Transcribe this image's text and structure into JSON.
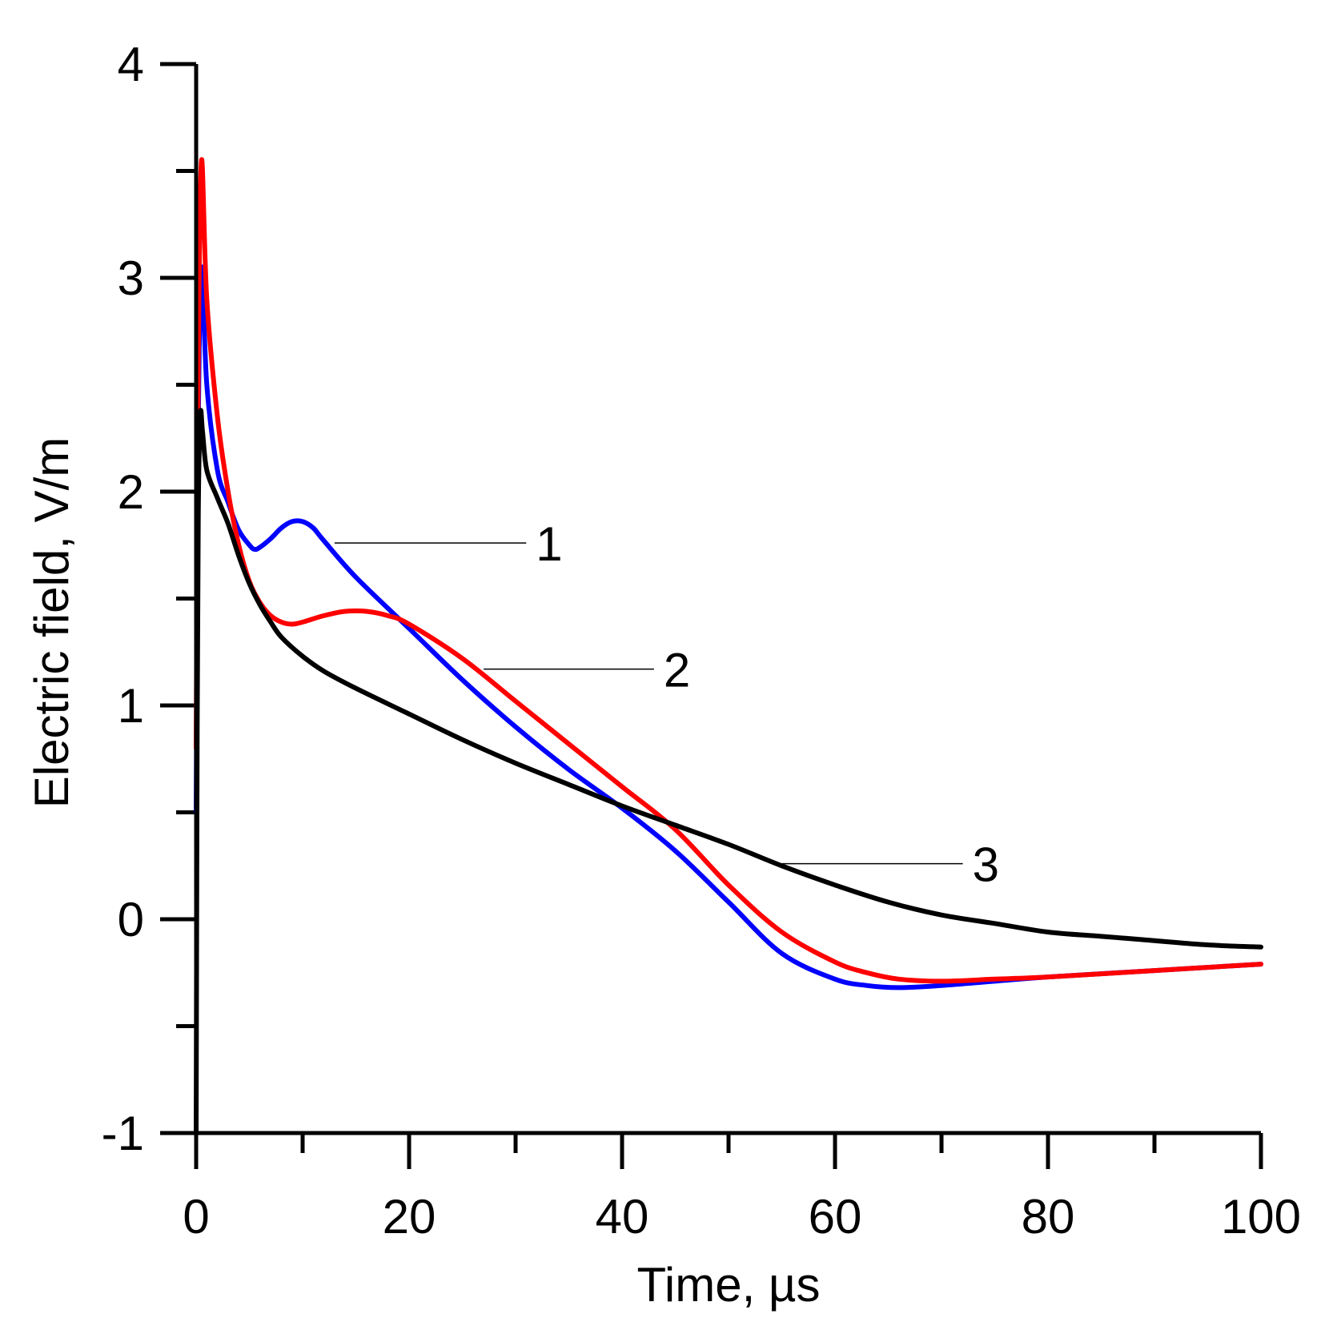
{
  "chart_data": {
    "type": "line",
    "title": "",
    "xlabel": "Time, µs",
    "ylabel": "Electric field, V/m",
    "xlim": [
      0,
      100
    ],
    "ylim": [
      -1,
      4
    ],
    "x_ticks": [
      0,
      20,
      40,
      60,
      80,
      100
    ],
    "x_tick_labels": [
      "0",
      "20",
      "40",
      "60",
      "80",
      "100"
    ],
    "x_minor_ticks": [
      10,
      30,
      50,
      70,
      90
    ],
    "y_ticks": [
      -1,
      0,
      1,
      2,
      3,
      4
    ],
    "y_tick_labels": [
      "-1",
      "0",
      "1",
      "2",
      "3",
      "4"
    ],
    "y_minor_ticks": [
      -0.5,
      0.5,
      1.5,
      2.5,
      3.5
    ],
    "grid": false,
    "series": [
      {
        "name": "1",
        "color": "#0000ff",
        "label_anchor": [
          13,
          1.76
        ],
        "label_pos": [
          31,
          1.76
        ],
        "x": [
          0,
          0.2,
          0.5,
          1,
          2,
          3,
          4,
          5,
          5.5,
          6,
          7,
          8,
          9,
          10,
          11,
          12,
          15,
          20,
          25,
          30,
          35,
          40,
          45,
          50,
          55,
          60,
          63,
          66,
          70,
          75,
          80,
          90,
          100
        ],
        "y": [
          0.5,
          2.3,
          3.05,
          2.5,
          2.1,
          1.95,
          1.82,
          1.75,
          1.73,
          1.74,
          1.78,
          1.83,
          1.86,
          1.86,
          1.83,
          1.77,
          1.6,
          1.36,
          1.12,
          0.9,
          0.7,
          0.52,
          0.32,
          0.08,
          -0.16,
          -0.28,
          -0.31,
          -0.32,
          -0.31,
          -0.29,
          -0.27,
          -0.24,
          -0.21
        ]
      },
      {
        "name": "2",
        "color": "#ff0000",
        "label_anchor": [
          27,
          1.17
        ],
        "label_pos": [
          43,
          1.17
        ],
        "x": [
          0,
          0.2,
          0.5,
          1,
          2,
          3,
          4,
          5,
          6,
          7,
          8,
          9,
          10,
          12,
          14,
          16,
          18,
          20,
          25,
          30,
          35,
          40,
          45,
          50,
          55,
          60,
          63,
          66,
          70,
          75,
          80,
          90,
          100
        ],
        "y": [
          0.8,
          2.6,
          3.55,
          2.9,
          2.35,
          2.0,
          1.75,
          1.58,
          1.48,
          1.42,
          1.39,
          1.38,
          1.39,
          1.42,
          1.44,
          1.44,
          1.42,
          1.38,
          1.22,
          1.02,
          0.82,
          0.62,
          0.42,
          0.16,
          -0.06,
          -0.2,
          -0.25,
          -0.28,
          -0.29,
          -0.28,
          -0.27,
          -0.24,
          -0.21
        ]
      },
      {
        "name": "3",
        "color": "#000000",
        "label_anchor": [
          55,
          0.26
        ],
        "label_pos": [
          72,
          0.26
        ],
        "x": [
          0,
          0.1,
          0.2,
          0.4,
          0.6,
          1,
          2,
          3,
          4,
          5,
          6,
          7,
          8,
          10,
          12,
          15,
          20,
          25,
          30,
          35,
          40,
          45,
          50,
          55,
          60,
          65,
          70,
          75,
          80,
          85,
          90,
          95,
          100
        ],
        "y": [
          -1,
          0.9,
          1.9,
          2.36,
          2.28,
          2.1,
          1.97,
          1.85,
          1.7,
          1.57,
          1.47,
          1.39,
          1.32,
          1.23,
          1.16,
          1.08,
          0.96,
          0.84,
          0.73,
          0.63,
          0.53,
          0.44,
          0.35,
          0.25,
          0.16,
          0.08,
          0.02,
          -0.02,
          -0.06,
          -0.08,
          -0.1,
          -0.12,
          -0.13
        ]
      }
    ]
  }
}
